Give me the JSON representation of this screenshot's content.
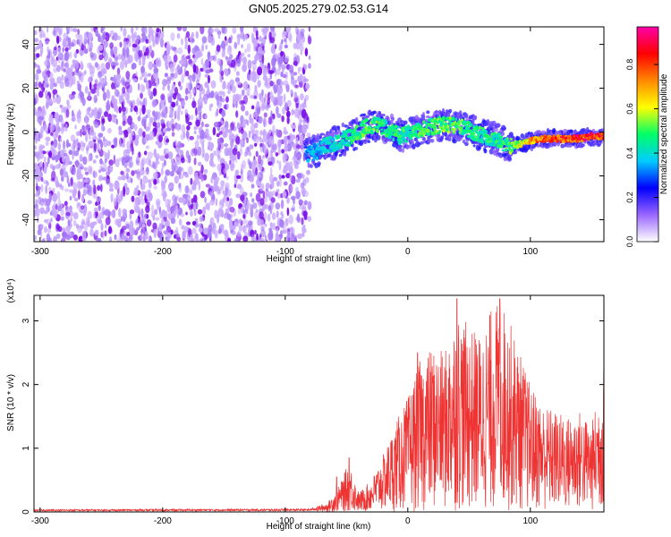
{
  "title": "GN05.2025.279.02.53.G14",
  "colors": {
    "snr_line": "#ee3333",
    "axis": "#000000",
    "scatter_light": "#c8a8ff",
    "scatter_dark": "#7a10e8"
  },
  "colormap": [
    "#ffffff",
    "#9966ff",
    "#0000ff",
    "#00ccff",
    "#00ff66",
    "#ffff00",
    "#ff8800",
    "#ff0000",
    "#ff00aa"
  ],
  "colorbar": {
    "label": "Normalized spectral amplitude",
    "range": [
      0,
      0.97
    ],
    "ticks": [
      {
        "v": 0.0,
        "label": "0.0"
      },
      {
        "v": 0.2,
        "label": "0.2"
      },
      {
        "v": 0.4,
        "label": "0.4"
      },
      {
        "v": 0.6,
        "label": "0.6"
      },
      {
        "v": 0.8,
        "label": "0.8"
      }
    ]
  },
  "chart_data": [
    {
      "type": "heatmap",
      "title": "GN05.2025.279.02.53.G14",
      "xlabel": "Height of straight line (km)",
      "ylabel": "Frequency (Hz)",
      "xlim": [
        -305,
        160
      ],
      "ylim": [
        -50,
        48
      ],
      "xticks": [
        {
          "v": -300,
          "label": "-300"
        },
        {
          "v": -200,
          "label": "-200"
        },
        {
          "v": -100,
          "label": "-100"
        },
        {
          "v": 0,
          "label": "0"
        },
        {
          "v": 100,
          "label": "100"
        }
      ],
      "yticks": [
        {
          "v": -40,
          "label": "-40"
        },
        {
          "v": -20,
          "label": "-20"
        },
        {
          "v": 0,
          "label": "0"
        },
        {
          "v": 20,
          "label": "20"
        },
        {
          "v": 40,
          "label": "40"
        }
      ],
      "noise_region": {
        "x_from": -305,
        "x_to": -80,
        "amplitude": "0.0-0.2"
      },
      "signal_track": [
        {
          "x": -83,
          "y": -10,
          "a": 0.35
        },
        {
          "x": -75,
          "y": -9,
          "a": 0.4
        },
        {
          "x": -65,
          "y": -6,
          "a": 0.45
        },
        {
          "x": -55,
          "y": -4,
          "a": 0.45
        },
        {
          "x": -45,
          "y": -2,
          "a": 0.5
        },
        {
          "x": -35,
          "y": 2,
          "a": 0.55
        },
        {
          "x": -25,
          "y": 3,
          "a": 0.55
        },
        {
          "x": -15,
          "y": 1,
          "a": 0.5
        },
        {
          "x": -5,
          "y": -2,
          "a": 0.5
        },
        {
          "x": 5,
          "y": 0,
          "a": 0.5
        },
        {
          "x": 15,
          "y": 2,
          "a": 0.55
        },
        {
          "x": 25,
          "y": 3,
          "a": 0.55
        },
        {
          "x": 35,
          "y": 3,
          "a": 0.55
        },
        {
          "x": 45,
          "y": 2,
          "a": 0.55
        },
        {
          "x": 55,
          "y": 0,
          "a": 0.5
        },
        {
          "x": 65,
          "y": -2,
          "a": 0.5
        },
        {
          "x": 75,
          "y": -4,
          "a": 0.5
        },
        {
          "x": 82,
          "y": -6,
          "a": 0.55
        },
        {
          "x": 88,
          "y": -6,
          "a": 0.6
        },
        {
          "x": 95,
          "y": -5,
          "a": 0.7
        },
        {
          "x": 102,
          "y": -4,
          "a": 0.75
        },
        {
          "x": 110,
          "y": -3,
          "a": 0.85
        },
        {
          "x": 120,
          "y": -3,
          "a": 0.9
        },
        {
          "x": 130,
          "y": -3,
          "a": 0.9
        },
        {
          "x": 140,
          "y": -3,
          "a": 0.9
        },
        {
          "x": 150,
          "y": -2,
          "a": 0.9
        },
        {
          "x": 160,
          "y": -2,
          "a": 0.85
        }
      ]
    },
    {
      "type": "line",
      "xlabel": "Height of straight line (km)",
      "ylabel": "SNR (10 * v/v)",
      "y_multiplier": "(x10⁴)",
      "xlim": [
        -305,
        160
      ],
      "ylim": [
        0,
        3.4
      ],
      "xticks": [
        {
          "v": -300,
          "label": "-300"
        },
        {
          "v": -200,
          "label": "-200"
        },
        {
          "v": -100,
          "label": "-100"
        },
        {
          "v": 0,
          "label": "0"
        },
        {
          "v": 100,
          "label": "100"
        }
      ],
      "yticks": [
        {
          "v": 0,
          "label": "0"
        },
        {
          "v": 1,
          "label": "1"
        },
        {
          "v": 2,
          "label": "2"
        },
        {
          "v": 3,
          "label": "3"
        }
      ],
      "envelope": [
        {
          "x": -305,
          "y": 0.04
        },
        {
          "x": -80,
          "y": 0.05
        },
        {
          "x": -65,
          "y": 0.15
        },
        {
          "x": -55,
          "y": 0.45
        },
        {
          "x": -48,
          "y": 0.8
        },
        {
          "x": -40,
          "y": 0.3
        },
        {
          "x": -30,
          "y": 0.5
        },
        {
          "x": -20,
          "y": 0.9
        },
        {
          "x": -10,
          "y": 1.4
        },
        {
          "x": 0,
          "y": 1.8
        },
        {
          "x": 10,
          "y": 2.4
        },
        {
          "x": 20,
          "y": 2.6
        },
        {
          "x": 30,
          "y": 2.5
        },
        {
          "x": 40,
          "y": 3.2
        },
        {
          "x": 50,
          "y": 2.9
        },
        {
          "x": 60,
          "y": 2.8
        },
        {
          "x": 70,
          "y": 3.3
        },
        {
          "x": 80,
          "y": 3.2
        },
        {
          "x": 90,
          "y": 2.6
        },
        {
          "x": 100,
          "y": 2.0
        },
        {
          "x": 110,
          "y": 1.7
        },
        {
          "x": 120,
          "y": 1.6
        },
        {
          "x": 130,
          "y": 1.5
        },
        {
          "x": 140,
          "y": 1.6
        },
        {
          "x": 150,
          "y": 1.4
        },
        {
          "x": 160,
          "y": 2.2
        }
      ],
      "peaks": [
        {
          "x": -58,
          "y": 0.55
        },
        {
          "x": -48,
          "y": 0.85
        },
        {
          "x": 8,
          "y": 2.5
        },
        {
          "x": 40,
          "y": 3.35
        },
        {
          "x": 75,
          "y": 3.35
        },
        {
          "x": 160,
          "y": 2.25
        }
      ]
    }
  ]
}
